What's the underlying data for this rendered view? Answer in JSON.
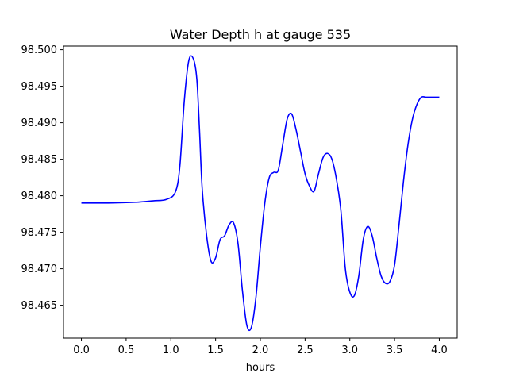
{
  "chart_data": {
    "type": "line",
    "title": "Water Depth h at gauge 535",
    "xlabel": "hours",
    "ylabel": "",
    "xlim": [
      -0.2,
      4.2
    ],
    "ylim": [
      98.4605,
      98.5005
    ],
    "xticks": [
      0.0,
      0.5,
      1.0,
      1.5,
      2.0,
      2.5,
      3.0,
      3.5,
      4.0
    ],
    "xtick_labels": [
      "0.0",
      "0.5",
      "1.0",
      "1.5",
      "2.0",
      "2.5",
      "3.0",
      "3.5",
      "4.0"
    ],
    "yticks": [
      98.465,
      98.47,
      98.475,
      98.48,
      98.485,
      98.49,
      98.495,
      98.5
    ],
    "ytick_labels": [
      "98.465",
      "98.470",
      "98.475",
      "98.480",
      "98.485",
      "98.490",
      "98.495",
      "98.500"
    ],
    "grid": false,
    "series": [
      {
        "color": "#0000ff",
        "x": [
          0.0,
          0.3,
          0.6,
          0.8,
          0.95,
          1.05,
          1.1,
          1.15,
          1.2,
          1.25,
          1.29,
          1.32,
          1.35,
          1.4,
          1.45,
          1.5,
          1.55,
          1.6,
          1.65,
          1.7,
          1.75,
          1.8,
          1.85,
          1.9,
          1.95,
          2.0,
          2.05,
          2.1,
          2.15,
          2.2,
          2.25,
          2.3,
          2.35,
          2.4,
          2.45,
          2.5,
          2.55,
          2.6,
          2.65,
          2.7,
          2.75,
          2.8,
          2.85,
          2.9,
          2.95,
          3.0,
          3.05,
          3.1,
          3.15,
          3.2,
          3.25,
          3.3,
          3.35,
          3.4,
          3.45,
          3.5,
          3.55,
          3.6,
          3.65,
          3.7,
          3.75,
          3.8,
          3.85,
          3.9,
          3.95,
          4.0
        ],
        "y": [
          98.479,
          98.479,
          98.4791,
          98.4793,
          98.4795,
          98.4805,
          98.484,
          98.493,
          98.4985,
          98.4988,
          98.496,
          98.489,
          98.481,
          98.4745,
          98.471,
          98.4715,
          98.474,
          98.4745,
          98.476,
          98.4763,
          98.4735,
          98.467,
          98.4622,
          98.462,
          98.466,
          98.473,
          98.479,
          98.4825,
          98.4832,
          98.4835,
          98.487,
          98.4905,
          98.4912,
          98.489,
          98.486,
          98.483,
          98.4813,
          98.4806,
          98.483,
          98.4852,
          98.4858,
          98.485,
          98.4823,
          98.478,
          98.47,
          98.4668,
          98.4663,
          98.469,
          98.474,
          98.4758,
          98.4745,
          98.4715,
          98.469,
          98.468,
          98.4683,
          98.4705,
          98.476,
          98.482,
          98.487,
          98.4905,
          98.4925,
          98.4935,
          98.4935,
          98.4935,
          98.4935,
          98.4935
        ]
      }
    ]
  }
}
